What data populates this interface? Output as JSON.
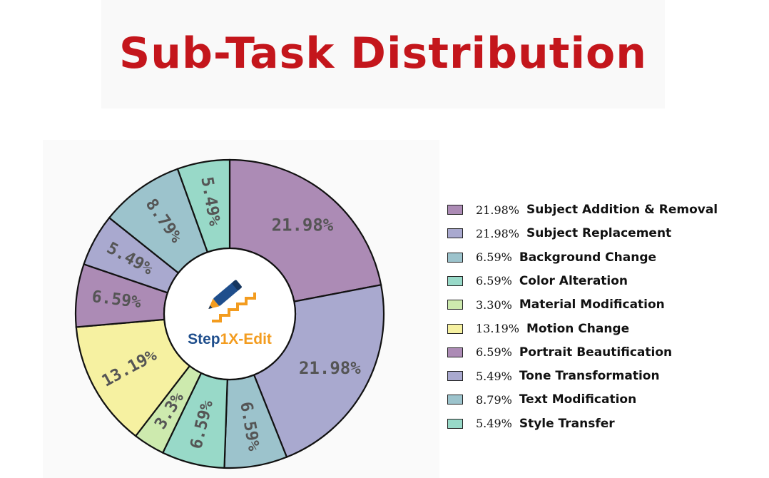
{
  "title": "Sub-Task Distribution",
  "logo": {
    "prefix": "Step",
    "suffix": "1X-Edit"
  },
  "colors": {
    "title": "#c4161c",
    "logo_blue": "#1f4e8c",
    "logo_orange": "#f39c1f"
  },
  "chart_data": {
    "type": "donut",
    "title": "Sub-Task Distribution",
    "legend_position": "right",
    "slices": [
      {
        "label": "Subject Addition & Removal",
        "value": 21.98,
        "legend_pct": "21.98%",
        "wedge_label": "21.98%",
        "color": "#ac8bb5"
      },
      {
        "label": "Subject Replacement",
        "value": 21.98,
        "legend_pct": "21.98%",
        "wedge_label": "21.98%",
        "color": "#a9a9cf"
      },
      {
        "label": "Background Change",
        "value": 6.59,
        "legend_pct": "6.59%",
        "wedge_label": "6.59%",
        "color": "#9cc3cc"
      },
      {
        "label": "Color Alteration",
        "value": 6.59,
        "legend_pct": "6.59%",
        "wedge_label": "6.59%",
        "color": "#98d9c8"
      },
      {
        "label": "Material Modification",
        "value": 3.3,
        "legend_pct": "3.30%",
        "wedge_label": "3.3%",
        "color": "#cdeaae"
      },
      {
        "label": "Motion Change",
        "value": 13.19,
        "legend_pct": "13.19%",
        "wedge_label": "13.19%",
        "color": "#f6f1a1"
      },
      {
        "label": "Portrait Beautification",
        "value": 6.59,
        "legend_pct": "6.59%",
        "wedge_label": "6.59%",
        "color": "#ac8bb5"
      },
      {
        "label": "Tone Transformation",
        "value": 5.49,
        "legend_pct": "5.49%",
        "wedge_label": "5.49%",
        "color": "#a9a9cf"
      },
      {
        "label": "Text Modification",
        "value": 8.79,
        "legend_pct": "8.79%",
        "wedge_label": "8.79%",
        "color": "#9cc3cc"
      },
      {
        "label": "Style Transfer",
        "value": 5.49,
        "legend_pct": "5.49%",
        "wedge_label": "5.49%",
        "color": "#98d9c8"
      }
    ]
  }
}
